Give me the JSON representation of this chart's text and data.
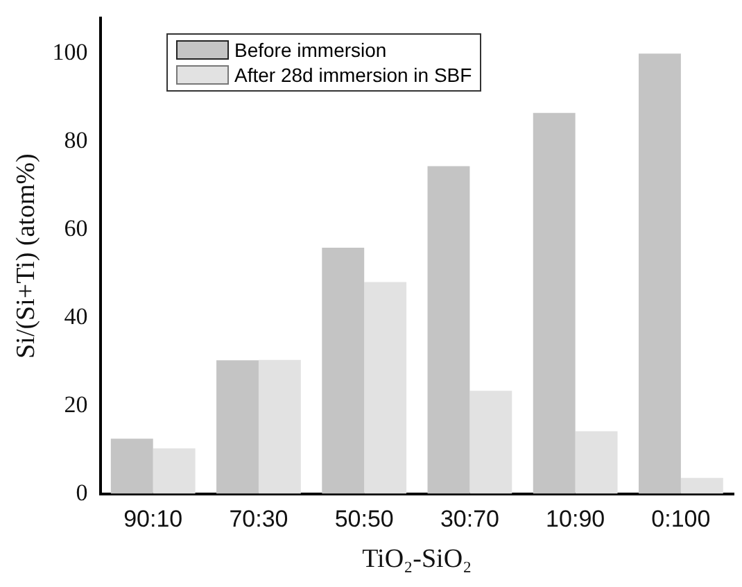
{
  "chart_data": {
    "type": "bar",
    "xlabel": "TiO₂-SiO₂",
    "ylabel": "Si/(Si+Ti) (atom%)",
    "categories": [
      "90:10",
      "70:30",
      "50:50",
      "30:70",
      "10:90",
      "0:100"
    ],
    "series": [
      {
        "name": "Before immersion",
        "color": "#c4c4c4",
        "values": [
          12.5,
          30.3,
          55.9,
          74.4,
          86.5,
          100
        ]
      },
      {
        "name": "After 28d immersion in SBF",
        "color": "#e2e2e2",
        "values": [
          10.3,
          30.4,
          48.1,
          23.4,
          14.2,
          3.6
        ]
      }
    ],
    "ylim": [
      0,
      108
    ],
    "yticks": [
      0,
      20,
      40,
      60,
      80,
      100
    ],
    "grid": false,
    "legend": "top left"
  }
}
